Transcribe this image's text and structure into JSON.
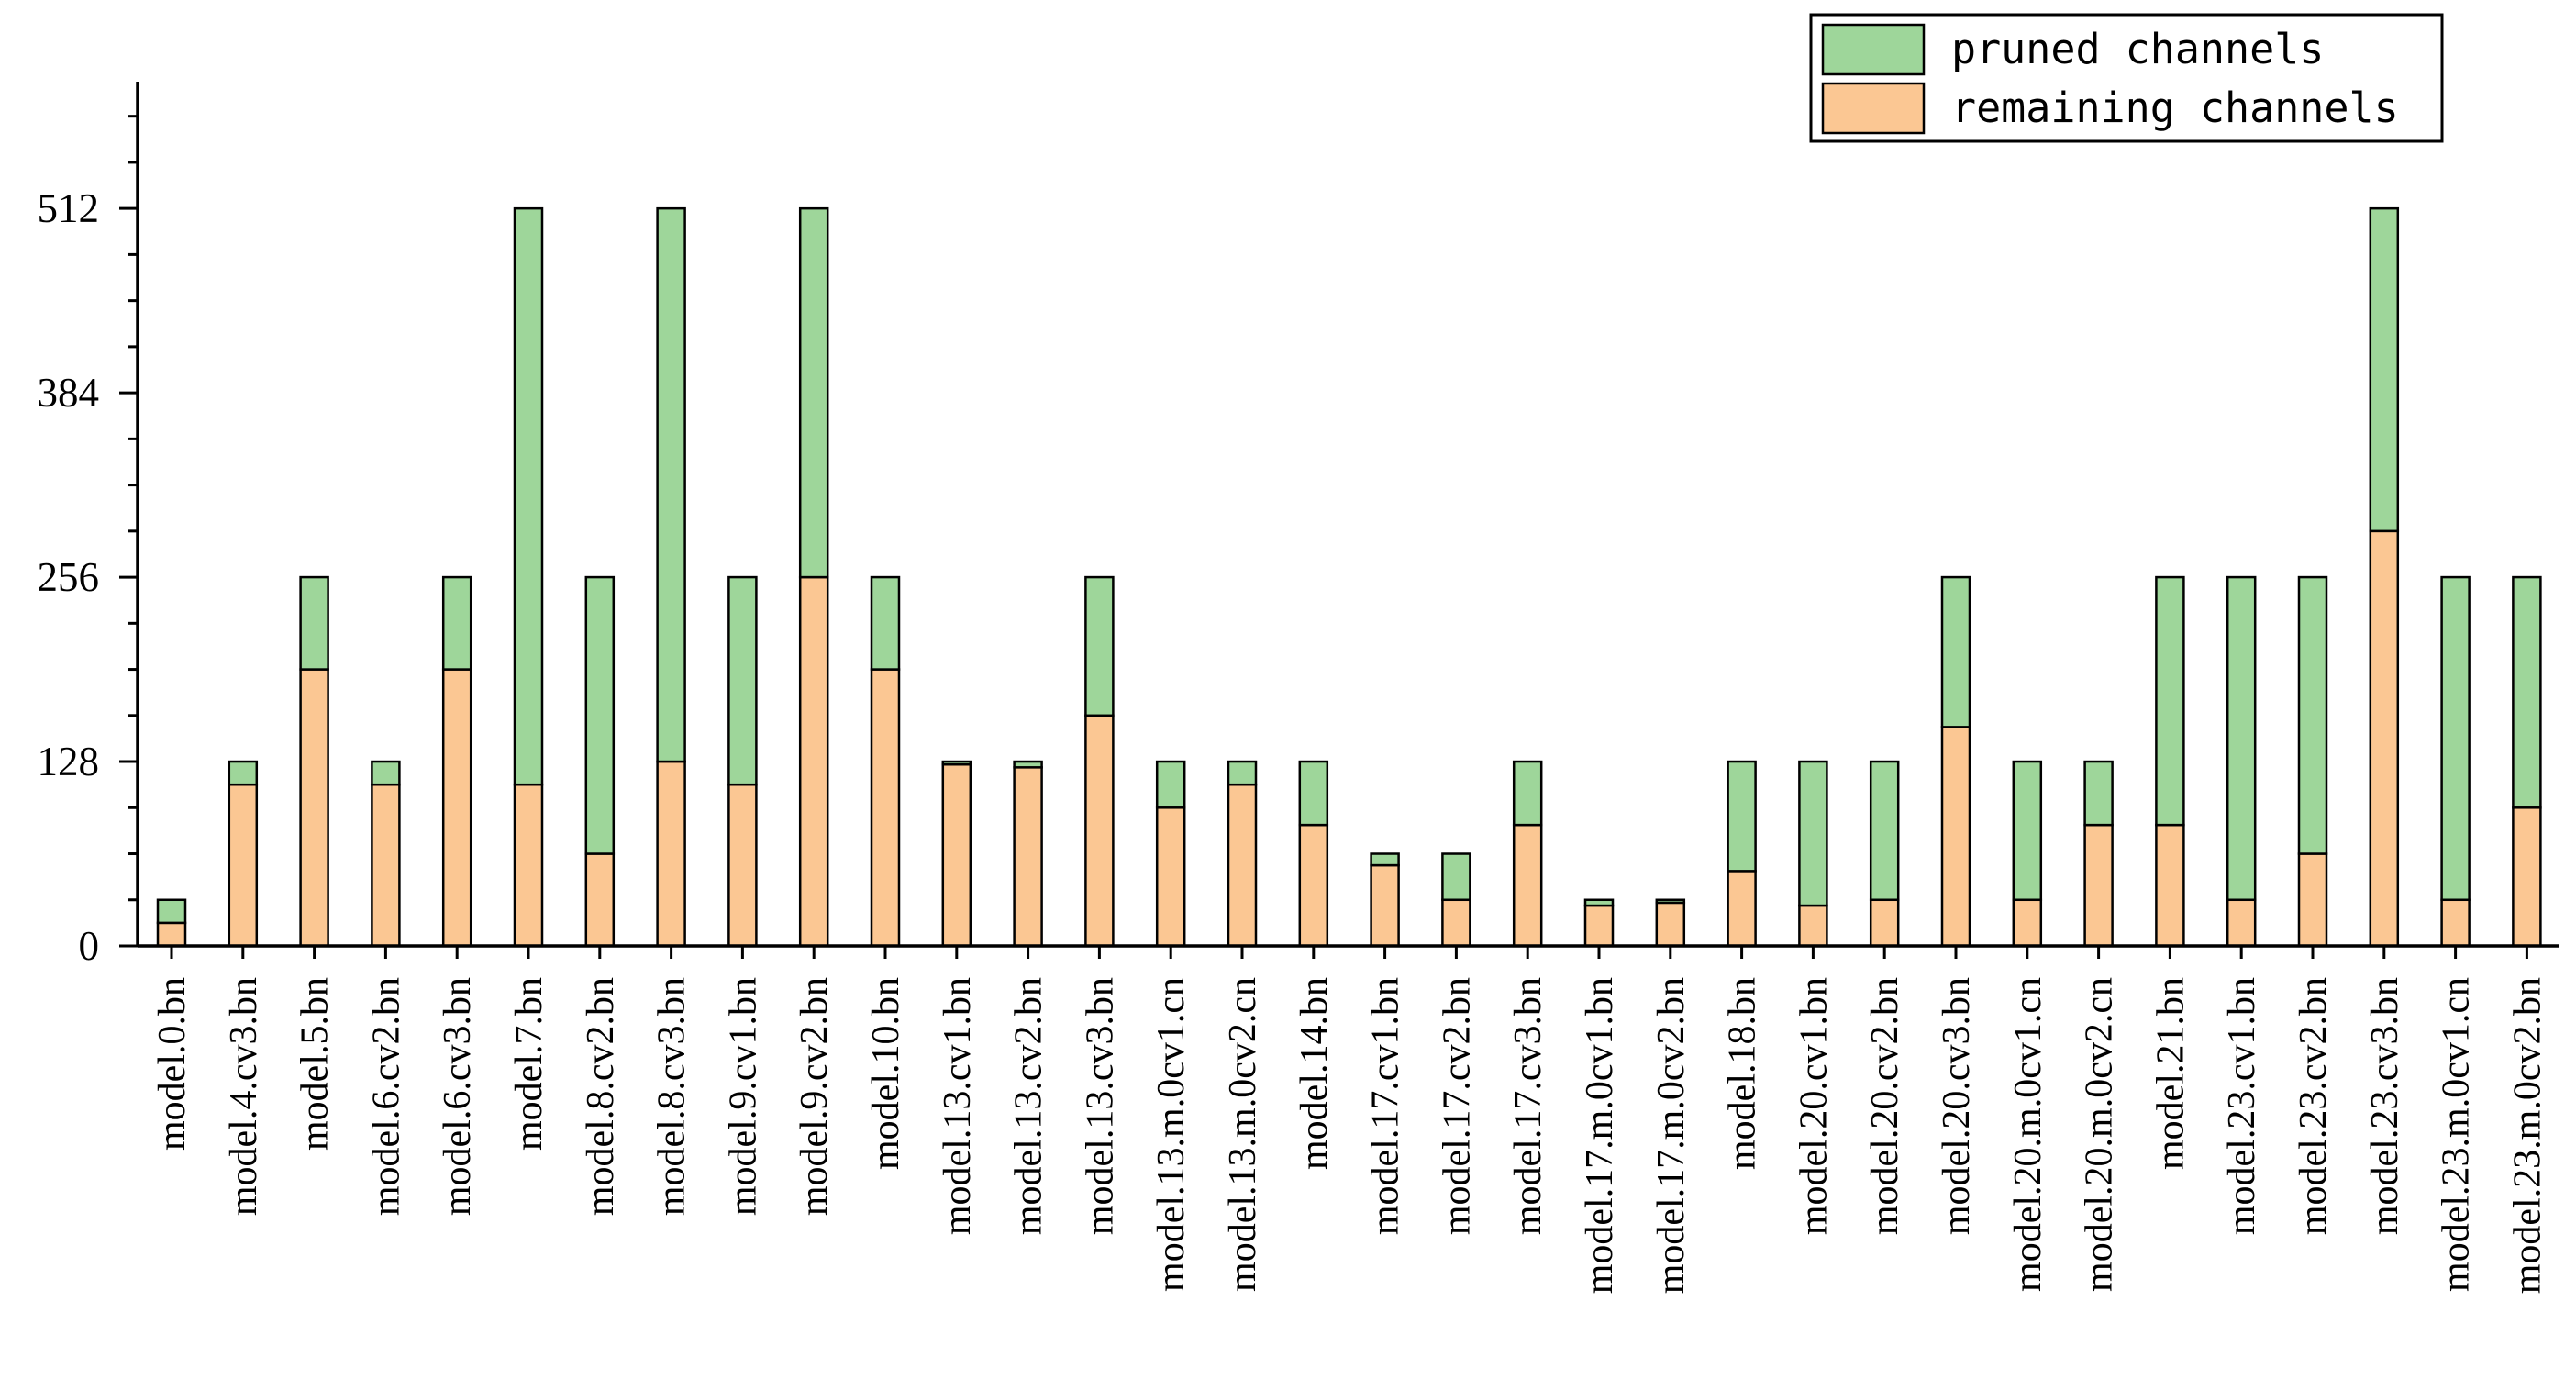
{
  "chart_data": {
    "type": "bar",
    "stacked": true,
    "title": "",
    "xlabel": "",
    "ylabel": "",
    "ylim": [
      0,
      600
    ],
    "yticks": [
      0,
      128,
      256,
      384,
      512
    ],
    "ytick_labels": [
      "0",
      "128",
      "256",
      "384",
      "512"
    ],
    "legend_position": "top-right",
    "colors": {
      "pruned": "#9ed69a",
      "remaining": "#fbc793",
      "stroke": "#000000"
    },
    "categories": [
      "model.0.bn",
      "model.4.cv3.bn",
      "model.5.bn",
      "model.6.cv2.bn",
      "model.6.cv3.bn",
      "model.7.bn",
      "model.8.cv2.bn",
      "model.8.cv3.bn",
      "model.9.cv1.bn",
      "model.9.cv2.bn",
      "model.10.bn",
      "model.13.cv1.bn",
      "model.13.cv2.bn",
      "model.13.cv3.bn",
      "model.13.m.0cv1.cn",
      "model.13.m.0cv2.cn",
      "model.14.bn",
      "model.17.cv1.bn",
      "model.17.cv2.bn",
      "model.17.cv3.bn",
      "model.17.m.0cv1.bn",
      "model.17.m.0cv2.bn",
      "model.18.bn",
      "model.20.cv1.bn",
      "model.20.cv2.bn",
      "model.20.cv3.bn",
      "model.20.m.0cv1.cn",
      "model.20.m.0cv2.cn",
      "model.21.bn",
      "model.23.cv1.bn",
      "model.23.cv2.bn",
      "model.23.cv3.bn",
      "model.23.m.0cv1.cn",
      "model.23.m.0cv2.bn"
    ],
    "series": [
      {
        "name": "remaining channels",
        "values": [
          16,
          112,
          192,
          112,
          192,
          112,
          64,
          128,
          112,
          256,
          192,
          126,
          124,
          160,
          96,
          112,
          84,
          56,
          32,
          84,
          28,
          30,
          52,
          28,
          32,
          152,
          32,
          84,
          84,
          32,
          64,
          288,
          32,
          96
        ]
      },
      {
        "name": "pruned channels",
        "values": [
          16,
          16,
          64,
          16,
          64,
          400,
          192,
          384,
          144,
          256,
          64,
          2,
          4,
          96,
          32,
          16,
          44,
          8,
          32,
          44,
          4,
          2,
          76,
          100,
          96,
          104,
          96,
          44,
          172,
          224,
          192,
          224,
          224,
          160
        ]
      }
    ],
    "legend": {
      "pruned_label": "pruned channels",
      "remaining_label": "remaining channels"
    }
  }
}
